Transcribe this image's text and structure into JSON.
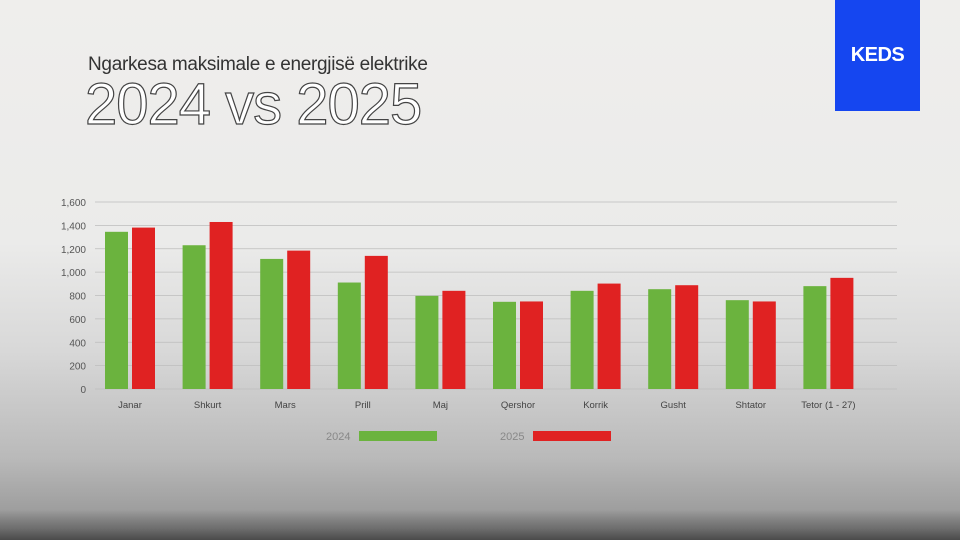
{
  "header": {
    "subtitle": "Ngarkesa maksimale e energjisë elektrike",
    "title": "2024 vs 2025"
  },
  "logo": {
    "text": "KEDS"
  },
  "chart_data": {
    "type": "bar",
    "title": "2024 vs 2025",
    "subtitle": "Ngarkesa maksimale e energjisë elektrike",
    "categories": [
      "Janar",
      "Shkurt",
      "Mars",
      "Prill",
      "Maj",
      "Qershor",
      "Korrik",
      "Gusht",
      "Shtator",
      "Tetor (1 - 27)"
    ],
    "series": [
      {
        "name": "2024",
        "color": "#6bb33e",
        "values": [
          1345,
          1230,
          1113,
          911,
          797,
          746,
          840,
          854,
          760,
          880
        ]
      },
      {
        "name": "2025",
        "color": "#e02222",
        "values": [
          1381,
          1429,
          1184,
          1139,
          840,
          749,
          902,
          888,
          749,
          951
        ]
      }
    ],
    "yticks": [
      "0",
      "200",
      "400",
      "600",
      "800",
      "1,000",
      "1,200",
      "1,400",
      "1,600"
    ],
    "ylim": [
      0,
      1600
    ],
    "grid": true,
    "legend": "bottom-center"
  }
}
